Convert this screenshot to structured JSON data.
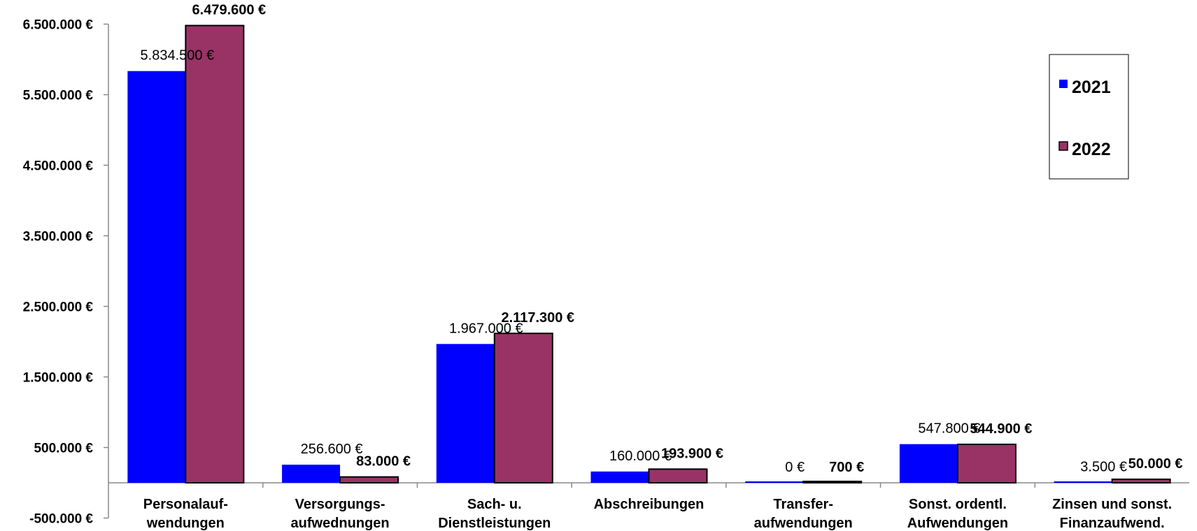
{
  "chart_data": {
    "type": "bar",
    "categories": [
      [
        "Personalauf-",
        "wendungen"
      ],
      [
        "Versorgungs-",
        "aufwednungen"
      ],
      [
        "Sach- u.",
        "Dienstleistungen"
      ],
      [
        "Abschreibungen"
      ],
      [
        "Transfer-",
        "aufwendungen"
      ],
      [
        "Sonst. ordentl.",
        "Aufwendungen"
      ],
      [
        "Zinsen und sonst.",
        "Finanzaufwend."
      ]
    ],
    "series": [
      {
        "name": "2021",
        "color": "#0000FF",
        "values": [
          5834500,
          256600,
          1967000,
          160000,
          0,
          547800,
          3500
        ],
        "labels": [
          "5.834.500 €",
          "256.600 €",
          "1.967.000 €",
          "160.000 €",
          "0 €",
          "547.800 €",
          "3.500 €"
        ]
      },
      {
        "name": "2022",
        "color": "#993366",
        "values": [
          6479600,
          83000,
          2117300,
          193900,
          700,
          544900,
          50000
        ],
        "labels": [
          "6.479.600 €",
          "83.000 €",
          "2.117.300 €",
          "193.900 €",
          "700 €",
          "544.900 €",
          "50.000 €"
        ]
      }
    ],
    "y_ticks": [
      {
        "value": 6500000,
        "label": "6.500.000 €"
      },
      {
        "value": 5500000,
        "label": "5.500.000 €"
      },
      {
        "value": 4500000,
        "label": "4.500.000 €"
      },
      {
        "value": 3500000,
        "label": "3.500.000 €"
      },
      {
        "value": 2500000,
        "label": "2.500.000 €"
      },
      {
        "value": 1500000,
        "label": "1.500.000 €"
      },
      {
        "value": 500000,
        "label": "500.000 €"
      },
      {
        "value": -500000,
        "label": "-500.000 €"
      }
    ],
    "ylim": [
      -500000,
      6500000
    ],
    "title": "",
    "xlabel": "",
    "ylabel": "",
    "grid": false,
    "legend_position": "top-right"
  }
}
